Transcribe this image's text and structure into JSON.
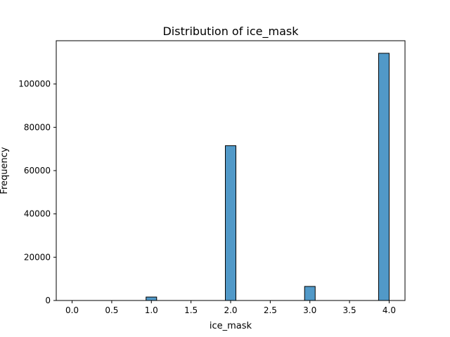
{
  "chart_data": {
    "type": "bar",
    "title": "Distribution of ice_mask",
    "xlabel": "ice_mask",
    "ylabel": "Frequency",
    "xlim": [
      -0.2,
      4.2
    ],
    "ylim": [
      0,
      120000
    ],
    "x_ticks": [
      "0.0",
      "0.5",
      "1.0",
      "1.5",
      "2.0",
      "2.5",
      "3.0",
      "3.5",
      "4.0"
    ],
    "x_tick_values": [
      0,
      0.5,
      1,
      1.5,
      2,
      2.5,
      3,
      3.5,
      4
    ],
    "y_ticks": [
      "0",
      "20000",
      "40000",
      "60000",
      "80000",
      "100000"
    ],
    "y_tick_values": [
      0,
      20000,
      40000,
      60000,
      80000,
      100000
    ],
    "bars": [
      {
        "x_start": 0.0,
        "x_end": 0.1333,
        "value": 0
      },
      {
        "x_start": 0.9333,
        "x_end": 1.0667,
        "value": 1600
      },
      {
        "x_start": 1.9333,
        "x_end": 2.0667,
        "value": 71500
      },
      {
        "x_start": 2.9333,
        "x_end": 3.0667,
        "value": 6500
      },
      {
        "x_start": 3.8667,
        "x_end": 4.0,
        "value": 114200
      }
    ],
    "bar_color": "#5199c8",
    "edge_color": "#000000",
    "grid": false,
    "legend": "none"
  }
}
